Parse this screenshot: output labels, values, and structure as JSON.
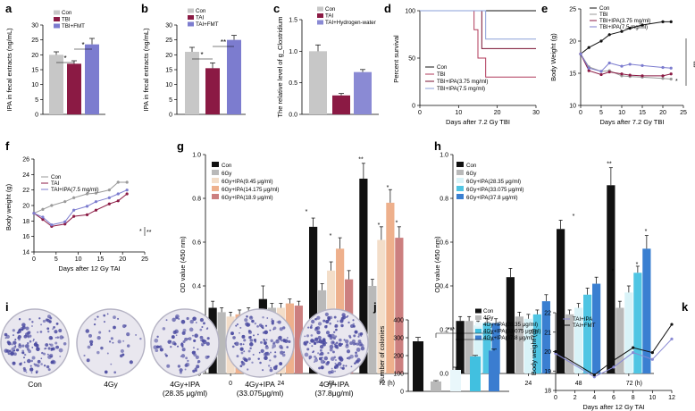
{
  "colors": {
    "grey": "#c7c7c7",
    "maroon": "#8b1a44",
    "purple": "#7c7ccf",
    "black": "#111111",
    "navy": "#1f1f6b",
    "hydro": "#8a8ad4",
    "ltgrey": "#b9b9b9",
    "g_ipa1": "#f3ddc8",
    "g_ipa2": "#eeb08c",
    "g_ipa3": "#cc7f7f",
    "h_ipa1": "#d9f3f8",
    "h_ipa2": "#4fc5e3",
    "h_ipa3": "#3a7fd1",
    "j_ipa1": "#e9f7fb",
    "j_ipa2": "#41c0e0",
    "j_ipa3": "#3b7dd0",
    "k1": "#8a8ad4",
    "k2": "#111111",
    "dish": "#4a4aa0"
  },
  "chart_data": [
    {
      "id": "a",
      "type": "bar",
      "label": "a",
      "ylabel": "IPA in fecal extracts (ng/mL)",
      "ylim": [
        0,
        30
      ],
      "yticks": [
        0,
        5,
        10,
        15,
        20,
        25,
        30
      ],
      "categories": [
        "Con",
        "TBI",
        "TBI+FMT"
      ],
      "values": [
        20,
        17,
        23.5
      ],
      "errors": [
        1,
        1,
        2
      ],
      "legend": [
        "Con",
        "TBI",
        "TBI+FMT"
      ],
      "sig": [
        "*",
        "*"
      ]
    },
    {
      "id": "b",
      "type": "bar",
      "label": "b",
      "ylabel": "IPA in fecal extracts (ng/mL)",
      "ylim": [
        0,
        30
      ],
      "yticks": [
        0,
        5,
        10,
        15,
        20,
        25,
        30
      ],
      "categories": [
        "Con",
        "TAI",
        "TAI+FMT"
      ],
      "values": [
        21,
        15.5,
        25
      ],
      "errors": [
        1.5,
        1.8,
        1.5
      ],
      "legend": [
        "Con",
        "TAI",
        "TAI+FMT"
      ],
      "sig": [
        "*",
        "**"
      ]
    },
    {
      "id": "c",
      "type": "bar",
      "label": "c",
      "ylabel": "The relative level of g_Clostridium",
      "ylim": [
        0,
        1.5
      ],
      "yticks": [
        "0.0",
        "0.5",
        "1.0",
        "1.5"
      ],
      "categories": [
        "Con",
        "TAI",
        "TAI+Hydrogen-water"
      ],
      "values": [
        1.0,
        0.3,
        0.67
      ],
      "errors": [
        0.1,
        0.03,
        0.04
      ],
      "legend": [
        "Con",
        "TAI",
        "TAI+Hydrogen-water"
      ]
    },
    {
      "id": "d",
      "type": "line",
      "label": "d",
      "ylabel": "Percent survival",
      "xlabel": "Days after 7.2 Gy TBI",
      "xlim": [
        0,
        30
      ],
      "ylim": [
        0,
        100
      ],
      "xticks": [
        0,
        10,
        20,
        30
      ],
      "yticks": [
        0,
        50,
        100
      ],
      "series": [
        {
          "name": "Con",
          "x": [
            0,
            30
          ],
          "y": [
            100,
            100
          ]
        },
        {
          "name": "TBI",
          "x": [
            0,
            14,
            15,
            17,
            30
          ],
          "y": [
            100,
            80,
            50,
            30,
            30
          ]
        },
        {
          "name": "TBI+IPA(3.75 mg/ml)",
          "x": [
            0,
            16,
            30
          ],
          "y": [
            100,
            60,
            60
          ]
        },
        {
          "name": "TBI+IPA(7.5 mg/ml)",
          "x": [
            0,
            17,
            30
          ],
          "y": [
            100,
            70,
            70
          ]
        }
      ]
    },
    {
      "id": "e",
      "type": "line",
      "label": "e",
      "ylabel": "Body Weight (g)",
      "xlabel": "Days after 7.2 Gy TBI",
      "xlim": [
        0,
        25
      ],
      "ylim": [
        10,
        25
      ],
      "xticks": [
        0,
        5,
        10,
        15,
        20,
        25
      ],
      "yticks": [
        10,
        15,
        20,
        25
      ],
      "series": [
        {
          "name": "Con",
          "x": [
            0,
            2,
            5,
            7,
            10,
            12,
            15,
            20,
            22
          ],
          "y": [
            18,
            19,
            20,
            21,
            21.5,
            22,
            22.5,
            23,
            23
          ]
        },
        {
          "name": "TBI",
          "x": [
            0,
            2,
            5,
            7,
            10,
            12,
            15,
            20,
            22
          ],
          "y": [
            18,
            16,
            15.3,
            15.4,
            14.6,
            14.5,
            14.4,
            14.2,
            14.1
          ]
        },
        {
          "name": "TBI+IPA(3.75 mg/ml)",
          "x": [
            0,
            2,
            5,
            7,
            10,
            12,
            15,
            20,
            22
          ],
          "y": [
            18,
            15.4,
            14.8,
            15.2,
            14.9,
            14.7,
            14.6,
            14.6,
            14.9
          ]
        },
        {
          "name": "TBI+IPA(7.5 mg/ml)",
          "x": [
            0,
            2,
            5,
            7,
            10,
            12,
            15,
            20,
            22
          ],
          "y": [
            18,
            15.8,
            15.3,
            16.6,
            16.1,
            16.4,
            16.2,
            15.9,
            15.8
          ]
        }
      ],
      "sig": [
        "*",
        "***"
      ]
    },
    {
      "id": "f",
      "type": "line",
      "label": "f",
      "ylabel": "Body weight (g)",
      "xlabel": "Days after 12 Gy TAI",
      "xlim": [
        0,
        25
      ],
      "ylim": [
        14,
        26
      ],
      "xticks": [
        0,
        5,
        10,
        15,
        20,
        25
      ],
      "yticks": [
        14,
        16,
        18,
        20,
        22,
        24,
        26
      ],
      "series": [
        {
          "name": "Con",
          "x": [
            0,
            2,
            4,
            7,
            9,
            12,
            14,
            17,
            19,
            21
          ],
          "y": [
            19,
            19.5,
            20,
            20.5,
            21,
            21.5,
            21.6,
            22,
            23,
            23
          ]
        },
        {
          "name": "TAI",
          "x": [
            0,
            2,
            4,
            7,
            9,
            12,
            14,
            17,
            19,
            21
          ],
          "y": [
            19,
            18.2,
            17.3,
            17.6,
            18.6,
            18.8,
            19.4,
            20.2,
            20.6,
            21.5
          ]
        },
        {
          "name": "TAI+IPA(7.5 mg/ml)",
          "x": [
            0,
            2,
            4,
            7,
            9,
            12,
            14,
            17,
            19,
            21
          ],
          "y": [
            19,
            18.5,
            17.5,
            17.9,
            19.4,
            19.9,
            20.5,
            21,
            21.5,
            22
          ]
        }
      ],
      "sig": [
        "*",
        "**"
      ]
    },
    {
      "id": "g",
      "type": "bar",
      "label": "g",
      "ylabel": "OD value (450 nm)",
      "ylim": [
        0,
        1.0
      ],
      "yticks": [
        "0.0",
        "0.2",
        "0.4",
        "0.6",
        "0.8",
        "1.0"
      ],
      "categories": [
        "0",
        "24",
        "48",
        "72 (h)"
      ],
      "series": [
        {
          "name": "Con",
          "values": [
            0.3,
            0.34,
            0.67,
            0.89
          ],
          "errors": [
            0.03,
            0.06,
            0.04,
            0.07
          ]
        },
        {
          "name": "6Gy",
          "values": [
            0.28,
            0.3,
            0.38,
            0.4
          ],
          "errors": [
            0.02,
            0.02,
            0.03,
            0.03
          ]
        },
        {
          "name": "6Gy+IPA(9.45 μg/ml)",
          "values": [
            0.26,
            0.3,
            0.47,
            0.61
          ],
          "errors": [
            0.02,
            0.02,
            0.04,
            0.06
          ]
        },
        {
          "name": "6Gy+IPA(14.175 μg/ml)",
          "values": [
            0.27,
            0.32,
            0.57,
            0.78
          ],
          "errors": [
            0.02,
            0.02,
            0.05,
            0.06
          ]
        },
        {
          "name": "6Gy+IPA(18.9 μg/ml)",
          "values": [
            0.28,
            0.31,
            0.43,
            0.62
          ],
          "errors": [
            0.02,
            0.02,
            0.04,
            0.05
          ]
        }
      ],
      "sig": [
        "*",
        "*",
        "**",
        "*",
        "*",
        "*"
      ]
    },
    {
      "id": "h",
      "type": "bar",
      "label": "h",
      "ylabel": "OD value (450 nm)",
      "ylim": [
        0,
        1.0
      ],
      "yticks": [
        "0.0",
        "0.2",
        "0.4",
        "0.6",
        "0.8",
        "1.0"
      ],
      "categories": [
        "0",
        "24",
        "48",
        "72 (h)"
      ],
      "series": [
        {
          "name": "Con",
          "values": [
            0.24,
            0.44,
            0.66,
            0.86
          ],
          "errors": [
            0.02,
            0.04,
            0.04,
            0.08
          ]
        },
        {
          "name": "6Gy",
          "values": [
            0.24,
            0.26,
            0.27,
            0.3
          ],
          "errors": [
            0.02,
            0.02,
            0.02,
            0.03
          ]
        },
        {
          "name": "6Gy+IPA(28.35 μg/ml)",
          "values": [
            0.22,
            0.25,
            0.3,
            0.37
          ],
          "errors": [
            0.02,
            0.02,
            0.02,
            0.03
          ]
        },
        {
          "name": "6Gy+IPA(33.075 μg/ml)",
          "values": [
            0.23,
            0.27,
            0.36,
            0.46
          ],
          "errors": [
            0.02,
            0.02,
            0.03,
            0.03
          ]
        },
        {
          "name": "6Gy+IPA(37.8 μg/ml)",
          "values": [
            0.23,
            0.33,
            0.41,
            0.57
          ],
          "errors": [
            0.02,
            0.03,
            0.03,
            0.06
          ]
        }
      ],
      "sig": [
        "**",
        "*",
        "*",
        "*",
        "*"
      ]
    },
    {
      "id": "j",
      "type": "bar",
      "label": "j",
      "ylabel": "Number of colonies",
      "ylim": [
        0,
        400
      ],
      "yticks": [
        0,
        100,
        200,
        300,
        400
      ],
      "categories": [
        "Con",
        "4Gy",
        "4Gy+IPA(28.35 μg/ml)",
        "4Gy+IPA(33.075 μg/ml)",
        "4Gy+IPA(37.8 μg/ml)"
      ],
      "values": [
        280,
        55,
        120,
        195,
        228
      ],
      "errors": [
        22,
        5,
        15,
        6,
        8
      ],
      "legend": [
        "Con",
        "4Gy",
        "4Gy+IPA(28.35 μg/ml)",
        "4Gy+IPA(33.075 μg/ml)",
        "4Gy+IPA(37.8 μg/ml)"
      ],
      "sig": [
        "***"
      ]
    },
    {
      "id": "k",
      "type": "line",
      "label": "k",
      "ylabel": "Body weight (g)",
      "xlabel": "Days after 12 Gy TAI",
      "xlim": [
        0,
        12
      ],
      "ylim": [
        18,
        22
      ],
      "xticks": [
        0,
        2,
        4,
        6,
        8,
        10,
        12
      ],
      "yticks": [
        18,
        19,
        20,
        21,
        22
      ],
      "series": [
        {
          "name": "TAI+IPA",
          "x": [
            0,
            4,
            6,
            8,
            10,
            12
          ],
          "y": [
            19.9,
            18.7,
            19.2,
            19.95,
            19.6,
            20.65
          ]
        },
        {
          "name": "TAI+FMT",
          "x": [
            0,
            4,
            6,
            8,
            10,
            12
          ],
          "y": [
            20,
            18.8,
            19.55,
            20.2,
            19.95,
            21.4
          ]
        }
      ]
    }
  ],
  "panel_i": {
    "label": "i",
    "dishes": [
      "Con",
      "4Gy",
      "4Gy+IPA\n(28.35 μg/ml)",
      "4Gy+IPA\n(33.075μg/ml)",
      "4Gy+IPA\n(37.8μg/ml)"
    ]
  }
}
